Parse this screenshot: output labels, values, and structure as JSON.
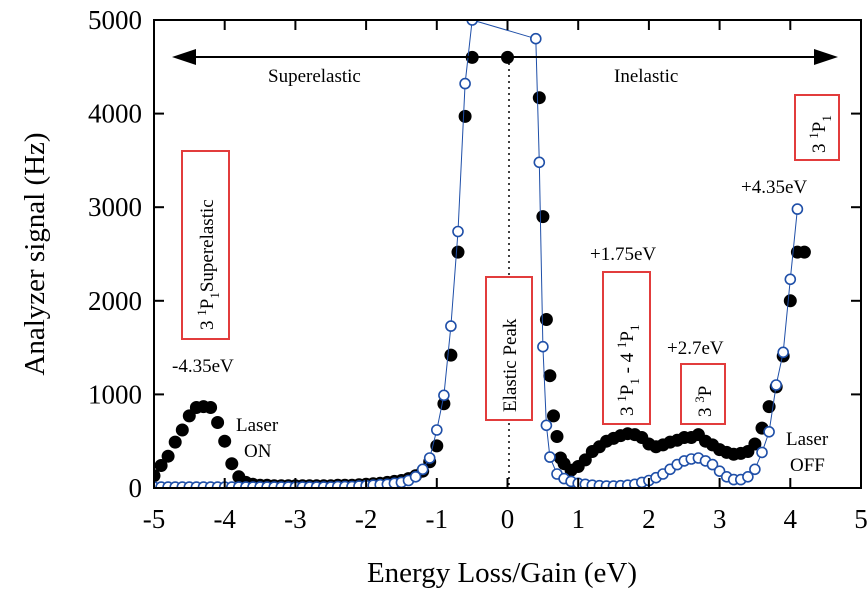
{
  "chart_data": {
    "type": "scatter",
    "xlabel": "Energy Loss/Gain (eV)",
    "ylabel": "Analyzer signal (Hz)",
    "xlim": [
      -5,
      5
    ],
    "ylim": [
      0,
      5000
    ],
    "x_ticks": [
      -5,
      -4,
      -3,
      -2,
      -1,
      0,
      1,
      2,
      3,
      4,
      5
    ],
    "x_tick_labels": [
      "-5",
      "-4",
      "-3",
      "-2",
      "-1",
      "0",
      "1",
      "2",
      "3",
      "4",
      "5"
    ],
    "y_ticks": [
      0,
      1000,
      2000,
      3000,
      4000,
      5000
    ],
    "y_tick_labels": [
      "0",
      "1000",
      "2000",
      "3000",
      "4000",
      "5000"
    ],
    "grid": false,
    "colors": {
      "laser_on": "#000000",
      "laser_off": "#1f4fa8",
      "box": "#e23c3c"
    },
    "series": [
      {
        "name": "Laser ON",
        "marker": "filled-circle",
        "x": [
          -5.0,
          -4.9,
          -4.8,
          -4.7,
          -4.6,
          -4.5,
          -4.4,
          -4.3,
          -4.2,
          -4.1,
          -4.0,
          -3.9,
          -3.8,
          -3.7,
          -3.6,
          -3.5,
          -3.4,
          -3.3,
          -3.2,
          -3.1,
          -3.0,
          -2.9,
          -2.8,
          -2.7,
          -2.6,
          -2.5,
          -2.4,
          -2.3,
          -2.2,
          -2.1,
          -2.0,
          -1.9,
          -1.8,
          -1.7,
          -1.6,
          -1.5,
          -1.4,
          -1.3,
          -1.2,
          -1.1,
          -1.0,
          -0.9,
          -0.8,
          -0.7,
          -0.6,
          -0.5,
          0.0,
          0.45,
          0.5,
          0.55,
          0.6,
          0.65,
          0.7,
          0.75,
          0.8,
          0.9,
          1.0,
          1.1,
          1.2,
          1.3,
          1.4,
          1.5,
          1.6,
          1.7,
          1.8,
          1.9,
          2.0,
          2.1,
          2.2,
          2.3,
          2.4,
          2.5,
          2.6,
          2.7,
          2.8,
          2.9,
          3.0,
          3.1,
          3.2,
          3.3,
          3.4,
          3.5,
          3.6,
          3.7,
          3.8,
          3.9,
          4.0,
          4.1,
          4.2
        ],
        "y": [
          130,
          240,
          340,
          490,
          620,
          770,
          860,
          870,
          860,
          700,
          500,
          260,
          120,
          60,
          40,
          30,
          30,
          25,
          25,
          25,
          25,
          25,
          25,
          25,
          25,
          25,
          30,
          30,
          30,
          35,
          40,
          45,
          50,
          60,
          70,
          80,
          100,
          130,
          180,
          280,
          450,
          900,
          1420,
          2520,
          3970,
          4600,
          4600,
          4170,
          2900,
          1800,
          1200,
          770,
          550,
          320,
          260,
          190,
          230,
          300,
          390,
          440,
          500,
          530,
          560,
          580,
          570,
          540,
          470,
          440,
          460,
          490,
          510,
          540,
          540,
          570,
          500,
          460,
          410,
          380,
          360,
          370,
          390,
          470,
          640,
          870,
          1080,
          1410,
          2000,
          2520,
          2520
        ]
      },
      {
        "name": "Laser OFF",
        "marker": "open-circle",
        "x": [
          -5.0,
          -4.9,
          -4.8,
          -4.7,
          -4.6,
          -4.5,
          -4.4,
          -4.3,
          -4.2,
          -4.1,
          -4.0,
          -3.9,
          -3.8,
          -3.7,
          -3.6,
          -3.5,
          -3.4,
          -3.3,
          -3.2,
          -3.1,
          -3.0,
          -2.9,
          -2.8,
          -2.7,
          -2.6,
          -2.5,
          -2.4,
          -2.3,
          -2.2,
          -2.1,
          -2.0,
          -1.9,
          -1.8,
          -1.7,
          -1.6,
          -1.5,
          -1.4,
          -1.3,
          -1.2,
          -1.1,
          -1.0,
          -0.9,
          -0.8,
          -0.7,
          -0.6,
          -0.5,
          0.4,
          0.45,
          0.5,
          0.55,
          0.6,
          0.7,
          0.8,
          0.9,
          1.0,
          1.1,
          1.2,
          1.3,
          1.4,
          1.5,
          1.6,
          1.7,
          1.8,
          1.9,
          2.0,
          2.1,
          2.2,
          2.3,
          2.4,
          2.5,
          2.6,
          2.7,
          2.8,
          2.9,
          3.0,
          3.1,
          3.2,
          3.3,
          3.4,
          3.5,
          3.6,
          3.7,
          3.8,
          3.9,
          4.0,
          4.1
        ],
        "y": [
          10,
          10,
          10,
          10,
          10,
          10,
          10,
          10,
          10,
          10,
          10,
          10,
          10,
          10,
          10,
          10,
          10,
          10,
          10,
          10,
          10,
          10,
          10,
          10,
          10,
          10,
          15,
          15,
          15,
          20,
          25,
          30,
          35,
          40,
          50,
          60,
          80,
          120,
          200,
          320,
          620,
          990,
          1730,
          2740,
          4320,
          5000,
          4800,
          3480,
          1510,
          670,
          330,
          150,
          100,
          70,
          50,
          40,
          30,
          25,
          20,
          20,
          25,
          30,
          40,
          60,
          80,
          110,
          150,
          200,
          250,
          290,
          310,
          320,
          290,
          250,
          180,
          120,
          90,
          90,
          120,
          200,
          380,
          600,
          1100,
          1450,
          2230,
          2980
        ]
      }
    ],
    "annotations": {
      "arrow_left_label": "Superelastic",
      "arrow_right_label": "Inelastic",
      "minus_435": "-4.35eV",
      "plus_435": "+4.35eV",
      "plus_175": "+1.75eV",
      "plus_27": "+2.7eV",
      "laser_on_1": "Laser",
      "laser_on_2": "ON",
      "laser_off_1": "Laser",
      "laser_off_2": "OFF",
      "elastic_peak": "Elastic Peak",
      "box_superelastic": {
        "a": "3 ",
        "b": "1",
        "c": "P",
        "d": "1",
        "e": "Superelastic"
      },
      "box_31p_41p": {
        "a": "3 ",
        "b": "1",
        "c": "P",
        "d": "1",
        "e": " - 4 ",
        "f": "1",
        "g": "P",
        "h": "1"
      },
      "box_33p": {
        "a": "3 ",
        "b": "3",
        "c": "P"
      },
      "box_31p": {
        "a": "3 ",
        "b": "1",
        "c": "P",
        "d": "1"
      }
    }
  }
}
